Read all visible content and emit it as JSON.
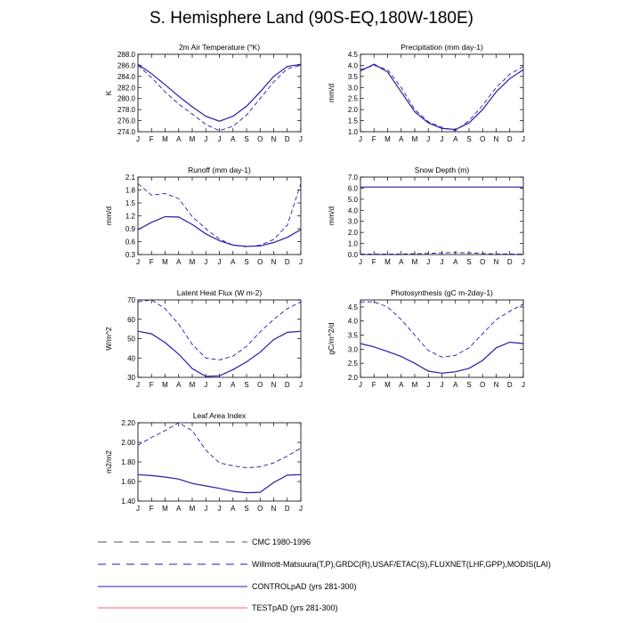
{
  "figure_title": "S. Hemisphere Land (90S-EQ,180W-180E)",
  "colors": {
    "control": "#2a1aa8",
    "test": "#ff0000",
    "obs_dash": "#2a1aa8",
    "cmc_dash": "#555555",
    "axis": "#000000"
  },
  "chart_data": [
    {
      "type": "line",
      "id": "t2m",
      "title": "2m Air Temperature (°K)",
      "ylabel": "K",
      "categories": [
        "J",
        "F",
        "M",
        "A",
        "M",
        "J",
        "J",
        "A",
        "S",
        "O",
        "N",
        "D",
        "J"
      ],
      "ylim": [
        274,
        288
      ],
      "yticks": [
        "274.0",
        "276.0",
        "278.0",
        "280.0",
        "282.0",
        "284.0",
        "286.0",
        "288.0"
      ],
      "series": [
        {
          "name": "CONTROLpAD (yrs 281-300)",
          "style": "solid",
          "values": [
            286.2,
            284.5,
            282.5,
            280.4,
            278.5,
            276.8,
            275.9,
            276.8,
            278.6,
            281.2,
            284.0,
            285.8,
            286.2
          ]
        },
        {
          "name": "Willmott-Matsuura",
          "style": "dash",
          "values": [
            286.0,
            283.8,
            281.2,
            279.0,
            277.2,
            275.3,
            274.2,
            275.0,
            277.0,
            280.0,
            283.0,
            285.4,
            286.0
          ]
        }
      ]
    },
    {
      "type": "line",
      "id": "precip",
      "title": "Precipitation (mm day-1)",
      "ylabel": "mm/d",
      "categories": [
        "J",
        "F",
        "M",
        "A",
        "M",
        "J",
        "J",
        "A",
        "S",
        "O",
        "N",
        "D",
        "J"
      ],
      "ylim": [
        1.0,
        4.5
      ],
      "yticks": [
        "1.0",
        "1.5",
        "2.0",
        "2.5",
        "3.0",
        "3.5",
        "4.0",
        "4.5"
      ],
      "series": [
        {
          "name": "CONTROLpAD (yrs 281-300)",
          "style": "solid",
          "values": [
            3.75,
            4.05,
            3.7,
            2.8,
            1.9,
            1.4,
            1.15,
            1.1,
            1.4,
            2.0,
            2.8,
            3.4,
            3.8
          ]
        },
        {
          "name": "Willmott-Matsuura",
          "style": "dash",
          "values": [
            3.8,
            4.0,
            3.8,
            3.0,
            2.0,
            1.45,
            1.2,
            1.05,
            1.5,
            2.2,
            3.0,
            3.6,
            3.95
          ]
        }
      ]
    },
    {
      "type": "line",
      "id": "runoff",
      "title": "Runoff (mm day-1)",
      "ylabel": "mm/d",
      "categories": [
        "J",
        "F",
        "M",
        "A",
        "M",
        "J",
        "J",
        "A",
        "S",
        "O",
        "N",
        "D",
        "J"
      ],
      "ylim": [
        0.3,
        2.1
      ],
      "yticks": [
        "0.3",
        "0.6",
        "0.9",
        "1.2",
        "1.5",
        "1.8",
        "2.1"
      ],
      "series": [
        {
          "name": "CONTROLpAD (yrs 281-300)",
          "style": "solid",
          "values": [
            0.88,
            1.05,
            1.18,
            1.17,
            1.0,
            0.78,
            0.62,
            0.52,
            0.49,
            0.5,
            0.58,
            0.7,
            0.88
          ]
        },
        {
          "name": "GRDC",
          "style": "dash",
          "values": [
            1.95,
            1.68,
            1.72,
            1.6,
            1.18,
            0.9,
            0.66,
            0.52,
            0.48,
            0.52,
            0.65,
            0.98,
            1.95
          ]
        }
      ]
    },
    {
      "type": "line",
      "id": "snow",
      "title": "Snow Depth (m)",
      "ylabel": "mm/d",
      "categories": [
        "J",
        "F",
        "M",
        "A",
        "M",
        "J",
        "J",
        "A",
        "S",
        "O",
        "N",
        "D",
        "J"
      ],
      "ylim": [
        0,
        7
      ],
      "yticks": [
        "0.0",
        "1.0",
        "2.0",
        "3.0",
        "4.0",
        "5.0",
        "6.0",
        "7.0"
      ],
      "series": [
        {
          "name": "CONTROLpAD (yrs 281-300)",
          "style": "solid",
          "values": [
            6.1,
            6.1,
            6.1,
            6.1,
            6.1,
            6.1,
            6.1,
            6.1,
            6.1,
            6.1,
            6.1,
            6.1,
            6.1
          ]
        },
        {
          "name": "USAF/ETAC",
          "style": "dash",
          "values": [
            0.05,
            0.05,
            0.05,
            0.05,
            0.07,
            0.1,
            0.15,
            0.18,
            0.15,
            0.1,
            0.06,
            0.05,
            0.05
          ]
        }
      ]
    },
    {
      "type": "line",
      "id": "lhf",
      "title": "Latent Heat Flux (W m-2)",
      "ylabel": "W/m^2",
      "categories": [
        "J",
        "F",
        "M",
        "A",
        "M",
        "J",
        "J",
        "A",
        "S",
        "O",
        "N",
        "D",
        "J"
      ],
      "ylim": [
        30,
        70
      ],
      "yticks": [
        "30",
        "40",
        "50",
        "60",
        "70"
      ],
      "series": [
        {
          "name": "CONTROLpAD (yrs 281-300)",
          "style": "solid",
          "values": [
            53.8,
            52.5,
            48.0,
            42.0,
            34.5,
            30.5,
            30.8,
            34.0,
            38.0,
            43.0,
            49.5,
            53.2,
            53.8
          ]
        },
        {
          "name": "FLUXNET",
          "style": "dash",
          "values": [
            69.0,
            70.0,
            65.5,
            57.5,
            47.0,
            40.0,
            39.0,
            41.0,
            46.0,
            53.5,
            60.0,
            65.5,
            69.0
          ]
        }
      ]
    },
    {
      "type": "line",
      "id": "gpp",
      "title": "Photosynthesis (gC m-2day-1)",
      "ylabel": "gC/m^2/d",
      "categories": [
        "J",
        "F",
        "M",
        "A",
        "M",
        "J",
        "J",
        "A",
        "S",
        "O",
        "N",
        "D",
        "J"
      ],
      "ylim": [
        2.0,
        4.75
      ],
      "yticks": [
        "2.0",
        "2.5",
        "3.0",
        "3.5",
        "4.0",
        "4.5"
      ],
      "series": [
        {
          "name": "CONTROLpAD (yrs 281-300)",
          "style": "solid",
          "values": [
            3.2,
            3.08,
            2.92,
            2.74,
            2.5,
            2.22,
            2.15,
            2.2,
            2.32,
            2.6,
            3.05,
            3.25,
            3.2
          ]
        },
        {
          "name": "FLUXNET",
          "style": "dash",
          "values": [
            4.68,
            4.68,
            4.5,
            4.05,
            3.5,
            2.95,
            2.72,
            2.78,
            3.05,
            3.55,
            4.05,
            4.35,
            4.6
          ]
        }
      ]
    },
    {
      "type": "line",
      "id": "lai",
      "title": "Leaf Area Index",
      "ylabel": "m2/m2",
      "categories": [
        "J",
        "F",
        "M",
        "A",
        "M",
        "J",
        "J",
        "A",
        "S",
        "O",
        "N",
        "D",
        "J"
      ],
      "ylim": [
        1.4,
        2.2
      ],
      "yticks": [
        "1.40",
        "1.60",
        "1.80",
        "2.00",
        "2.20"
      ],
      "series": [
        {
          "name": "CONTROLpAD (yrs 281-300)",
          "style": "solid",
          "values": [
            1.67,
            1.66,
            1.645,
            1.625,
            1.58,
            1.555,
            1.53,
            1.5,
            1.485,
            1.49,
            1.59,
            1.665,
            1.67
          ]
        },
        {
          "name": "MODIS",
          "style": "dash",
          "values": [
            1.97,
            2.05,
            2.12,
            2.2,
            2.12,
            1.92,
            1.79,
            1.76,
            1.74,
            1.75,
            1.79,
            1.86,
            1.94
          ]
        }
      ]
    }
  ],
  "legend": [
    {
      "label": "CMC 1980-1996",
      "style": "longdash",
      "color": "#555555"
    },
    {
      "label": "Willmott-Matsuura(T,P),GRDC(R),USAF/ETAC(S),FLUXNET(LHF,GPP),MODIS(LAI)",
      "style": "dash",
      "color": "#2a1aa8"
    },
    {
      "label": "CONTROLpAD (yrs 281-300)",
      "style": "solid",
      "color": "#2a1aa8"
    },
    {
      "label": "TESTpAD (yrs 281-300)",
      "style": "solid",
      "color": "#ff6070"
    }
  ]
}
